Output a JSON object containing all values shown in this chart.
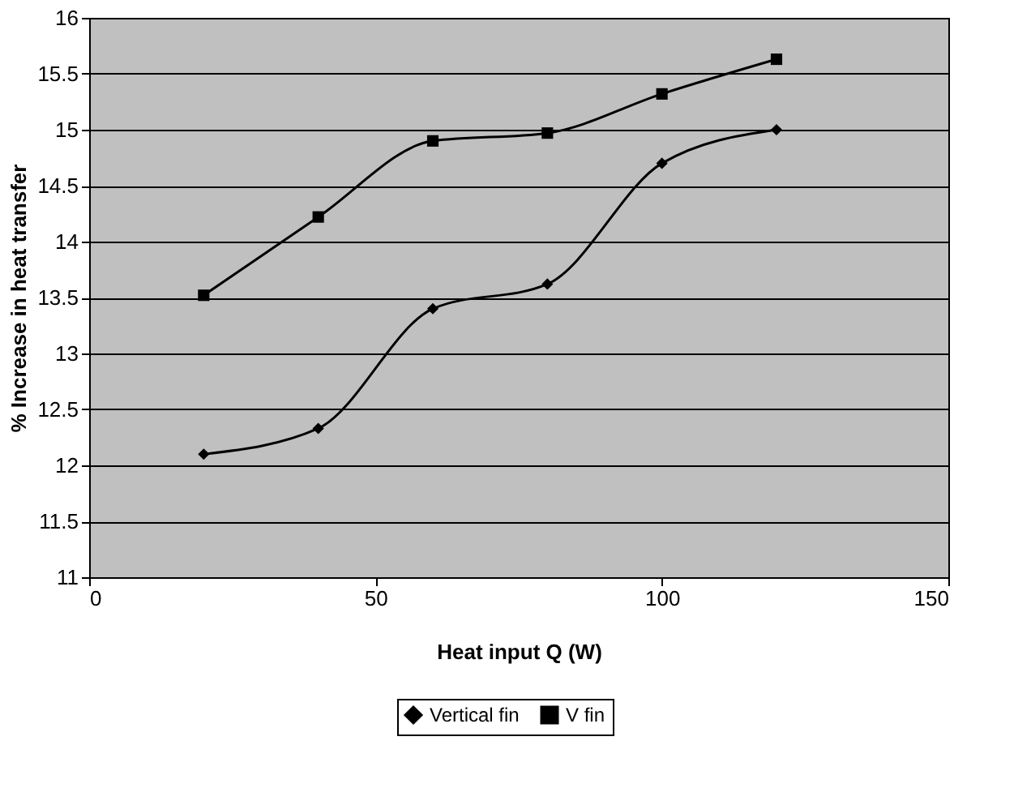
{
  "chart_data": {
    "type": "line",
    "xlabel": "Heat input Q (W)",
    "ylabel": "% Increase in heat transfer",
    "x": [
      20,
      40,
      60,
      80,
      100,
      120
    ],
    "series": [
      {
        "name": "Vertical fin",
        "color": "#000000",
        "marker": "diamond",
        "values": [
          12.1,
          12.33,
          13.4,
          13.62,
          14.7,
          15.0
        ]
      },
      {
        "name": "V fin",
        "color": "#000000",
        "marker": "square",
        "values": [
          13.52,
          14.22,
          14.9,
          14.97,
          15.32,
          15.63
        ]
      }
    ],
    "xlim": [
      0,
      150
    ],
    "xticks": [
      0,
      50,
      100,
      150
    ],
    "ylim": [
      11,
      16
    ],
    "yticks": [
      11,
      11.5,
      12,
      12.5,
      13,
      13.5,
      14,
      14.5,
      15,
      15.5,
      16
    ],
    "grid": "y",
    "legend": "bottom"
  }
}
